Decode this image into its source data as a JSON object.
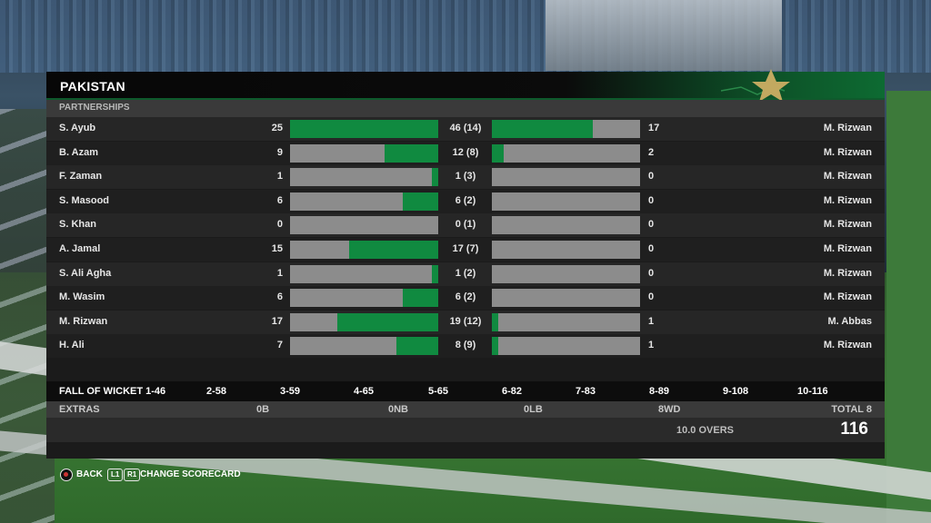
{
  "header": {
    "team": "PAKISTAN",
    "section": "PARTNERSHIPS"
  },
  "partnerships": [
    {
      "left_batter": "S. Ayub",
      "left_runs": "25",
      "total": "46 (14)",
      "right_runs": "17",
      "right_batter": "M. Rizwan",
      "left_fill": 1.0,
      "right_fill": 0.68
    },
    {
      "left_batter": "B. Azam",
      "left_runs": "9",
      "total": "12 (8)",
      "right_runs": "2",
      "right_batter": "M. Rizwan",
      "left_fill": 0.36,
      "right_fill": 0.08
    },
    {
      "left_batter": "F. Zaman",
      "left_runs": "1",
      "total": "1 (3)",
      "right_runs": "0",
      "right_batter": "M. Rizwan",
      "left_fill": 0.04,
      "right_fill": 0.0
    },
    {
      "left_batter": "S. Masood",
      "left_runs": "6",
      "total": "6 (2)",
      "right_runs": "0",
      "right_batter": "M. Rizwan",
      "left_fill": 0.24,
      "right_fill": 0.0
    },
    {
      "left_batter": "S. Khan",
      "left_runs": "0",
      "total": "0 (1)",
      "right_runs": "0",
      "right_batter": "M. Rizwan",
      "left_fill": 0.0,
      "right_fill": 0.0
    },
    {
      "left_batter": "A. Jamal",
      "left_runs": "15",
      "total": "17 (7)",
      "right_runs": "0",
      "right_batter": "M. Rizwan",
      "left_fill": 0.6,
      "right_fill": 0.0
    },
    {
      "left_batter": "S. Ali Agha",
      "left_runs": "1",
      "total": "1 (2)",
      "right_runs": "0",
      "right_batter": "M. Rizwan",
      "left_fill": 0.04,
      "right_fill": 0.0
    },
    {
      "left_batter": "M. Wasim",
      "left_runs": "6",
      "total": "6 (2)",
      "right_runs": "0",
      "right_batter": "M. Rizwan",
      "left_fill": 0.24,
      "right_fill": 0.0
    },
    {
      "left_batter": "M. Rizwan",
      "left_runs": "17",
      "total": "19 (12)",
      "right_runs": "1",
      "right_batter": "M. Abbas",
      "left_fill": 0.68,
      "right_fill": 0.04
    },
    {
      "left_batter": "H. Ali",
      "left_runs": "7",
      "total": "8 (9)",
      "right_runs": "1",
      "right_batter": "M. Rizwan",
      "left_fill": 0.28,
      "right_fill": 0.04
    }
  ],
  "fall_of_wickets": [
    "FALL OF WICKET 1-46",
    "2-58",
    "3-59",
    "4-65",
    "5-65",
    "6-82",
    "7-83",
    "8-89",
    "9-108",
    "10-116"
  ],
  "extras": {
    "label": "EXTRAS",
    "b": "0B",
    "nb": "0NB",
    "lb": "0LB",
    "wd": "8WD",
    "total": "TOTAL 8"
  },
  "summary": {
    "overs": "10.0 OVERS",
    "score": "116"
  },
  "controls": {
    "back": "BACK",
    "l1": "L1",
    "r1": "R1",
    "change": "CHANGE SCORECARD"
  },
  "colors": {
    "fill": "#108a40",
    "track": "#8c8c8c",
    "header_green": "#0d6b32"
  }
}
